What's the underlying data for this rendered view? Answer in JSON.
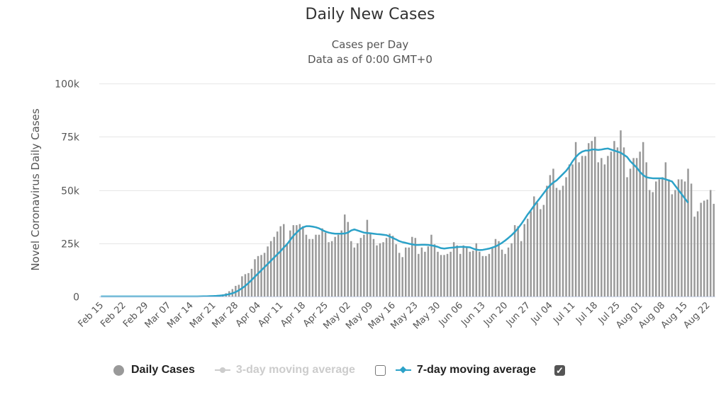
{
  "chart_data": {
    "type": "bar",
    "title": "Daily New Cases",
    "subtitle": "Cases per Day",
    "subtitle2": "Data as of 0:00 GMT+0",
    "ylabel": "Novel Coronavirus Daily Cases",
    "xlabel": "",
    "ylim": [
      0,
      100000
    ],
    "yticks": [
      0,
      25000,
      50000,
      75000,
      100000
    ],
    "ytick_labels": [
      "0",
      "25k",
      "50k",
      "75k",
      "100k"
    ],
    "grid": true,
    "start_date": "Feb 15",
    "xtick_labels": [
      "Feb 15",
      "Feb 22",
      "Feb 29",
      "Mar 07",
      "Mar 14",
      "Mar 21",
      "Mar 28",
      "Apr 04",
      "Apr 11",
      "Apr 18",
      "Apr 25",
      "May 02",
      "May 09",
      "May 16",
      "May 23",
      "May 30",
      "Jun 06",
      "Jun 13",
      "Jun 20",
      "Jun 27",
      "Jul 04",
      "Jul 11",
      "Jul 18",
      "Jul 25",
      "Aug 01",
      "Aug 08",
      "Aug 15",
      "Aug 22"
    ],
    "series": [
      {
        "name": "Daily Cases",
        "type": "bar",
        "color": "#999999",
        "values": [
          0,
          0,
          0,
          0,
          0,
          0,
          0,
          0,
          0,
          0,
          0,
          0,
          0,
          0,
          0,
          0,
          0,
          0,
          0,
          0,
          0,
          0,
          0,
          0,
          0,
          0,
          0,
          0,
          0,
          0,
          50,
          100,
          150,
          200,
          300,
          400,
          500,
          700,
          1000,
          1500,
          2500,
          3500,
          5000,
          5500,
          9500,
          10500,
          11000,
          13000,
          17500,
          19000,
          19500,
          20500,
          23500,
          26000,
          28000,
          30500,
          33000,
          34000,
          25000,
          31000,
          33500,
          33500,
          34000,
          33000,
          29000,
          27000,
          27000,
          29000,
          29000,
          32000,
          30000,
          25500,
          26000,
          28000,
          29000,
          31000,
          38500,
          35000,
          26000,
          23000,
          25000,
          27500,
          29000,
          36000,
          30000,
          27000,
          24000,
          25000,
          25500,
          27500,
          29500,
          28500,
          24500,
          20500,
          18500,
          23000,
          23000,
          28000,
          27500,
          20000,
          23000,
          21000,
          23500,
          29000,
          24500,
          21000,
          19500,
          19500,
          20000,
          21000,
          25500,
          24000,
          20000,
          24000,
          23000,
          21000,
          21500,
          25000,
          21000,
          19000,
          19000,
          20000,
          23000,
          27000,
          26000,
          22000,
          20000,
          23000,
          25000,
          33500,
          33000,
          26000,
          34000,
          36500,
          40000,
          47000,
          44000,
          41000,
          43000,
          52000,
          57000,
          60000,
          51000,
          50000,
          52000,
          56000,
          62000,
          62000,
          72500,
          63000,
          66000,
          66000,
          72000,
          73000,
          75000,
          63000,
          65000,
          62000,
          66000,
          68000,
          73000,
          70000,
          78000,
          70000,
          56000,
          60000,
          65000,
          65000,
          68000,
          72500,
          63000,
          50000,
          49000,
          54000,
          55000,
          56000,
          63000,
          55000,
          48000,
          50000,
          55000,
          55000,
          54000,
          60000,
          53000,
          37500,
          40000,
          44000,
          45000,
          45500,
          50000,
          43500
        ]
      },
      {
        "name": "7-day moving average",
        "type": "line",
        "color": "#2ca2c8",
        "values": [
          0,
          0,
          0,
          0,
          0,
          0,
          0,
          0,
          0,
          0,
          0,
          0,
          0,
          0,
          0,
          0,
          0,
          0,
          0,
          0,
          0,
          0,
          0,
          0,
          0,
          0,
          0,
          0,
          0,
          0,
          20,
          40,
          70,
          100,
          150,
          200,
          280,
          400,
          550,
          800,
          1100,
          1500,
          2100,
          2900,
          3900,
          5000,
          6300,
          7800,
          9300,
          10800,
          12300,
          13800,
          15300,
          16800,
          18300,
          19800,
          21300,
          23000,
          24500,
          26500,
          28500,
          30000,
          31500,
          32500,
          33000,
          33000,
          32800,
          32500,
          32000,
          31200,
          30500,
          30000,
          29700,
          29500,
          29500,
          29500,
          29600,
          30000,
          31000,
          31500,
          31000,
          30500,
          30000,
          29800,
          29700,
          29500,
          29300,
          29200,
          29000,
          28800,
          28200,
          27500,
          26800,
          26000,
          25500,
          25200,
          24800,
          24500,
          24200,
          24200,
          24300,
          24300,
          24200,
          24000,
          23700,
          23300,
          22700,
          22500,
          22700,
          22900,
          23000,
          23200,
          23300,
          23300,
          23200,
          23100,
          22500,
          22000,
          21800,
          21900,
          22200,
          22500,
          23000,
          23500,
          24300,
          25200,
          26300,
          27500,
          28800,
          30300,
          32000,
          34000,
          36200,
          38500,
          40500,
          42600,
          44600,
          46500,
          48500,
          50500,
          52200,
          53500,
          54500,
          56000,
          57500,
          59000,
          61000,
          63500,
          65500,
          67000,
          68000,
          68500,
          68500,
          69000,
          69000,
          68800,
          69000,
          69300,
          69500,
          69000,
          68500,
          68000,
          67500,
          66500,
          65500,
          63500,
          62000,
          60500,
          58500,
          57000,
          56000,
          55700,
          55500,
          55500,
          55500,
          55500,
          55000,
          54500,
          54000,
          52000,
          50000,
          48000,
          46000,
          44000
        ]
      },
      {
        "name": "3-day moving average",
        "type": "line",
        "color": "#cccccc",
        "visible": false
      }
    ]
  },
  "legend": {
    "items": [
      {
        "label": "Daily Cases",
        "checked": null
      },
      {
        "label": "3-day moving average",
        "checked": false
      },
      {
        "label": "7-day moving average",
        "checked": true
      }
    ],
    "check_glyph": "✓"
  }
}
